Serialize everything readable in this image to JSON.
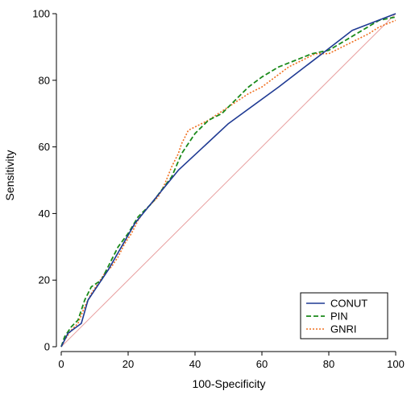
{
  "chart_data": {
    "type": "line",
    "xlabel": "100-Specificity",
    "ylabel": "Sensitivity",
    "xlim": [
      0,
      100
    ],
    "ylim": [
      0,
      100
    ],
    "x_ticks": [
      "0",
      "20",
      "40",
      "60",
      "80",
      "100"
    ],
    "y_ticks": [
      "0",
      "20",
      "40",
      "60",
      "80",
      "100"
    ],
    "grid": false,
    "legend_position": "bottom-right",
    "reference_line": {
      "x": [
        0,
        100
      ],
      "y": [
        0,
        100
      ],
      "color": "#e8a0a0"
    },
    "series": [
      {
        "name": "CONUT",
        "color": "#1f3a93",
        "style": "solid",
        "points": [
          [
            0,
            0
          ],
          [
            2,
            4
          ],
          [
            6,
            7
          ],
          [
            8,
            14
          ],
          [
            14,
            23
          ],
          [
            22,
            37
          ],
          [
            35,
            53
          ],
          [
            50,
            67
          ],
          [
            65,
            78
          ],
          [
            78,
            88
          ],
          [
            87,
            95
          ],
          [
            100,
            100
          ]
        ]
      },
      {
        "name": "PIN",
        "color": "#1a8a1a",
        "style": "dashed",
        "points": [
          [
            0,
            0
          ],
          [
            1,
            3
          ],
          [
            3,
            6
          ],
          [
            5,
            8
          ],
          [
            7,
            14
          ],
          [
            9,
            18
          ],
          [
            12,
            20
          ],
          [
            14,
            24
          ],
          [
            17,
            30
          ],
          [
            20,
            34
          ],
          [
            23,
            39
          ],
          [
            27,
            43
          ],
          [
            30,
            47
          ],
          [
            33,
            51
          ],
          [
            36,
            58
          ],
          [
            40,
            64
          ],
          [
            44,
            68
          ],
          [
            48,
            70
          ],
          [
            52,
            74
          ],
          [
            56,
            78
          ],
          [
            60,
            81
          ],
          [
            65,
            84
          ],
          [
            70,
            86
          ],
          [
            75,
            88
          ],
          [
            80,
            89
          ],
          [
            85,
            92
          ],
          [
            90,
            95
          ],
          [
            95,
            98
          ],
          [
            100,
            99
          ]
        ]
      },
      {
        "name": "GNRI",
        "color": "#f07020",
        "style": "dotted",
        "points": [
          [
            0,
            0
          ],
          [
            1,
            2
          ],
          [
            3,
            5
          ],
          [
            5,
            7
          ],
          [
            7,
            12
          ],
          [
            9,
            16
          ],
          [
            11,
            19
          ],
          [
            13,
            22
          ],
          [
            15,
            24
          ],
          [
            17,
            27
          ],
          [
            19,
            31
          ],
          [
            21,
            34
          ],
          [
            23,
            38
          ],
          [
            25,
            41
          ],
          [
            27,
            43
          ],
          [
            29,
            45
          ],
          [
            31,
            49
          ],
          [
            33,
            54
          ],
          [
            35,
            58
          ],
          [
            36,
            61
          ],
          [
            37,
            63
          ],
          [
            38,
            65
          ],
          [
            40,
            66
          ],
          [
            42,
            67
          ],
          [
            44,
            68
          ],
          [
            47,
            70
          ],
          [
            50,
            72
          ],
          [
            53,
            74
          ],
          [
            56,
            76
          ],
          [
            60,
            78
          ],
          [
            64,
            81
          ],
          [
            68,
            84
          ],
          [
            72,
            86
          ],
          [
            76,
            88
          ],
          [
            80,
            88
          ],
          [
            84,
            90
          ],
          [
            88,
            92
          ],
          [
            92,
            94
          ],
          [
            95,
            96
          ],
          [
            100,
            98
          ]
        ]
      }
    ]
  }
}
